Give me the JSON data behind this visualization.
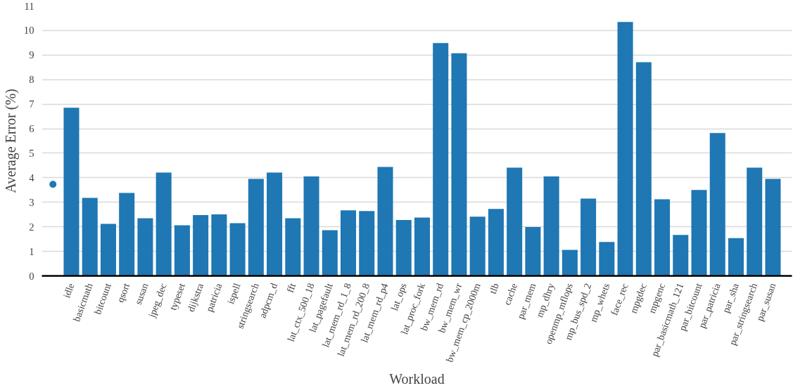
{
  "chart_data": {
    "type": "bar",
    "xlabel": "Workload",
    "ylabel": "Average Error (%)",
    "categories": [
      null,
      "idle",
      "basicmath",
      "bitcount",
      "qsort",
      "susan",
      "jpeg_dec",
      "typeset",
      "dijkstra",
      "patricia",
      "ispell",
      "stringsearch",
      "adpcm_d",
      "fft",
      "lat_ctx_500_18",
      "lat_pagefault",
      "lat_mem_rd_1_8",
      "lat_mem_rd_200_8",
      "lat_mem_rd_p4",
      "lat_ops",
      "lat_proc_fork",
      "bw_mem_rd",
      "bw_mem_wr",
      "bw_mem_cp_2000m",
      "tlb",
      "cache",
      "par_mem",
      "mp_dhry",
      "openmp_mflops",
      "mp_bus_spd_2",
      "mp_whets",
      "face_rec",
      "mpgdec",
      "mpgenc",
      "par_basicmath_121",
      "par_bitcount",
      "par_patricia",
      "par_sha",
      "par_stringsearch",
      "par_susan"
    ],
    "series": [
      {
        "color": "#1f77b4",
        "values": [
          null,
          6.85,
          3.18,
          2.12,
          3.38,
          2.35,
          4.21,
          2.06,
          2.48,
          2.51,
          2.15,
          3.95,
          4.21,
          2.35,
          4.05,
          1.86,
          2.67,
          2.64,
          4.44,
          2.28,
          2.38,
          9.49,
          9.07,
          2.41,
          2.73,
          4.41,
          1.99,
          4.05,
          1.06,
          3.15,
          1.38,
          10.35,
          8.71,
          3.12,
          1.67,
          3.5,
          5.82,
          1.54,
          4.41,
          3.95
        ]
      },
      {
        "type": "scatter",
        "color": "#1f77b4",
        "marker": "circle",
        "values": [
          3.73,
          null,
          null,
          null,
          null,
          null,
          null,
          null,
          null,
          null,
          null,
          null,
          null,
          null,
          null,
          null,
          null,
          null,
          null,
          null,
          null,
          null,
          null,
          null,
          null,
          null,
          null,
          null,
          null,
          null,
          null,
          null,
          null,
          null,
          null,
          null,
          null,
          null,
          null,
          null
        ]
      }
    ],
    "ylim": [
      0,
      11
    ],
    "yticks": [
      0,
      1,
      2,
      3,
      4,
      5,
      6,
      7,
      8,
      9,
      10,
      11
    ],
    "grid": "y"
  }
}
